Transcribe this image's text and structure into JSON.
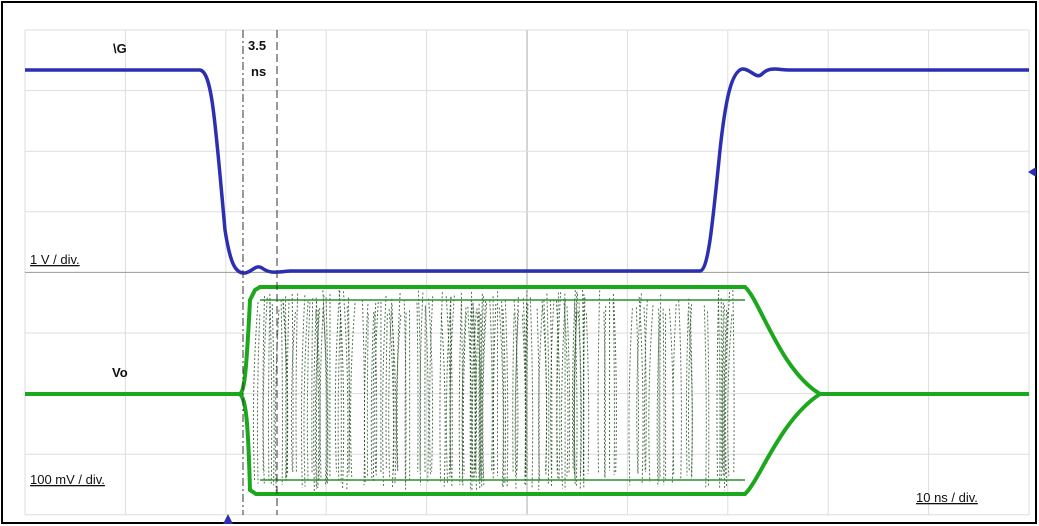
{
  "labels": {
    "g_signal": "\\G",
    "delay_value": "3.5",
    "delay_unit": "ns",
    "g_scale": "1 V / div.",
    "vo_signal": "Vo",
    "vo_scale": "100 mV / div.",
    "time_scale": "10 ns / div."
  }
}
